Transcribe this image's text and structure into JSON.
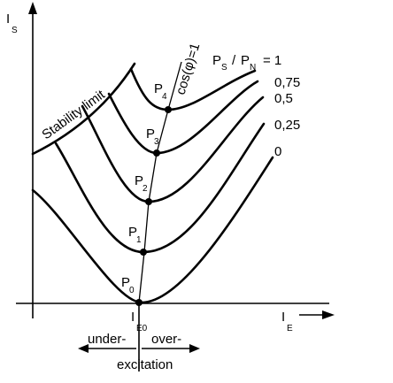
{
  "axes": {
    "y_label": "I",
    "y_label_sub": "S",
    "x_label": "I",
    "x_label_sub": "E",
    "origin_label": "I",
    "origin_label_sub": "E0"
  },
  "legend": {
    "ps": "P",
    "ps_sub": "S",
    "slash": "/",
    "pn": "P",
    "pn_sub": "N",
    "eq": "= 1"
  },
  "curve_labels": [
    "0,75",
    "0,5",
    "0,25",
    "0"
  ],
  "stability_limit": "Stability limit",
  "power_factor_line": "cos(φ)=1",
  "points": [
    {
      "label": "P",
      "sub": "0"
    },
    {
      "label": "P",
      "sub": "1"
    },
    {
      "label": "P",
      "sub": "2"
    },
    {
      "label": "P",
      "sub": "3"
    },
    {
      "label": "P",
      "sub": "4"
    }
  ],
  "excitation": {
    "under": "under-",
    "over": "over-",
    "caption": "excitation"
  }
}
